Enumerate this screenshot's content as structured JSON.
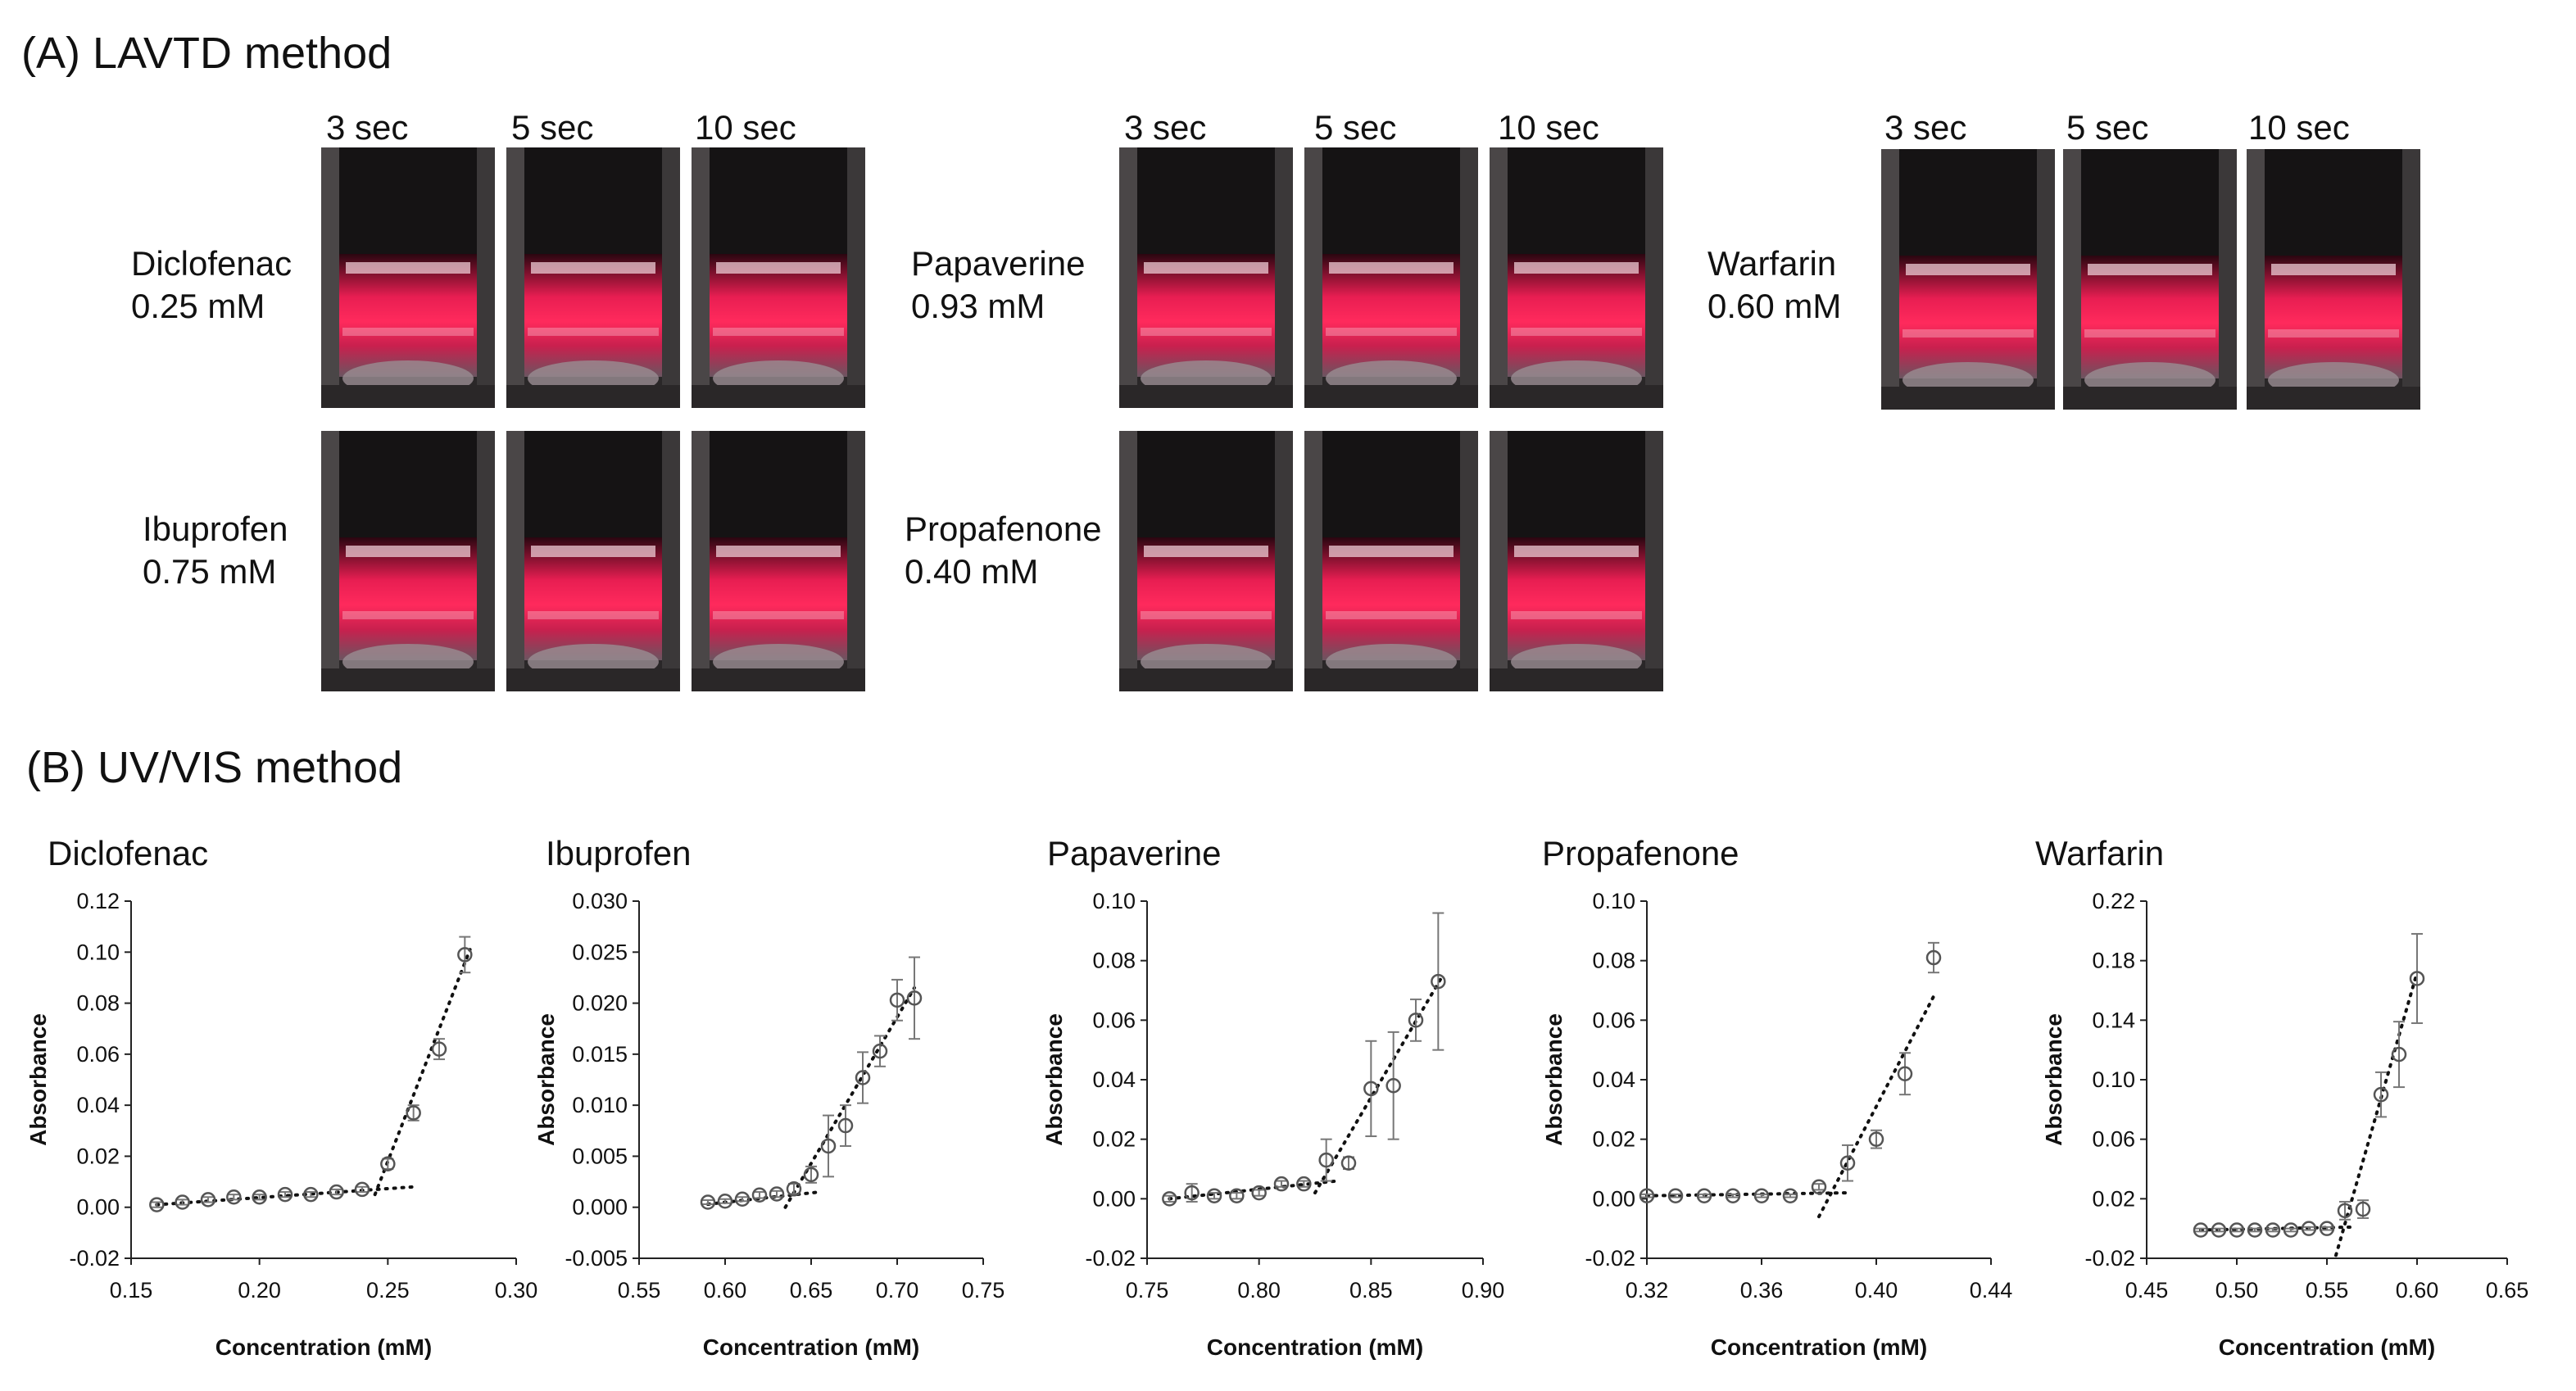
{
  "panel_a": {
    "title": "(A) LAVTD method",
    "groups": [
      {
        "times": [
          "3 sec",
          "5 sec",
          "10 sec"
        ],
        "rows": [
          {
            "name": "Diclofenac",
            "conc": "0.25 mM"
          },
          {
            "name": "Ibuprofen",
            "conc": "0.75 mM"
          }
        ]
      },
      {
        "times": [
          "3 sec",
          "5 sec",
          "10 sec"
        ],
        "rows": [
          {
            "name": "Papaverine",
            "conc": "0.93 mM"
          },
          {
            "name": "Propafenone",
            "conc": "0.40 mM"
          }
        ]
      },
      {
        "times": [
          "3 sec",
          "5 sec",
          "10 sec"
        ],
        "rows": [
          {
            "name": "Warfarin",
            "conc": "0.60 mM"
          }
        ]
      }
    ],
    "laser_color": "#ff2a5c"
  },
  "panel_b": {
    "title": "(B) UV/VIS method"
  },
  "chart_data": [
    {
      "type": "scatter",
      "title": "Diclofenac",
      "xlabel": "Concentration (mM)",
      "ylabel": "Absorbance",
      "xlim": [
        0.15,
        0.3
      ],
      "xticks": [
        "0.15",
        "0.20",
        "0.25",
        "0.30"
      ],
      "ylim": [
        -0.02,
        0.12
      ],
      "yticks": [
        "-0.02",
        "0.00",
        "0.02",
        "0.04",
        "0.06",
        "0.08",
        "0.10",
        "0.12"
      ],
      "x": [
        0.16,
        0.17,
        0.18,
        0.19,
        0.2,
        0.21,
        0.22,
        0.23,
        0.24,
        0.25,
        0.26,
        0.27,
        0.28
      ],
      "y": [
        0.001,
        0.002,
        0.003,
        0.004,
        0.004,
        0.005,
        0.005,
        0.006,
        0.007,
        0.017,
        0.037,
        0.062,
        0.099
      ],
      "err": [
        0.001,
        0.001,
        0.001,
        0.001,
        0.001,
        0.001,
        0.001,
        0.001,
        0.001,
        0.002,
        0.003,
        0.004,
        0.007
      ],
      "trendlines": [
        {
          "from": [
            0.16,
            0.001
          ],
          "to": [
            0.26,
            0.008
          ]
        },
        {
          "from": [
            0.245,
            0.005
          ],
          "to": [
            0.282,
            0.101
          ]
        }
      ]
    },
    {
      "type": "scatter",
      "title": "Ibuprofen",
      "xlabel": "Concentration (mM)",
      "ylabel": "Absorbance",
      "xlim": [
        0.55,
        0.75
      ],
      "xticks": [
        "0.55",
        "0.60",
        "0.65",
        "0.70",
        "0.75"
      ],
      "ylim": [
        -0.005,
        0.03
      ],
      "yticks": [
        "-0.005",
        "0.000",
        "0.005",
        "0.010",
        "0.015",
        "0.020",
        "0.025",
        "0.030"
      ],
      "x": [
        0.59,
        0.6,
        0.61,
        0.62,
        0.63,
        0.64,
        0.65,
        0.66,
        0.67,
        0.68,
        0.69,
        0.7,
        0.71
      ],
      "y": [
        0.0005,
        0.0006,
        0.0008,
        0.0012,
        0.0013,
        0.0018,
        0.0032,
        0.006,
        0.008,
        0.0127,
        0.0153,
        0.0203,
        0.0205
      ],
      "err": [
        0.0002,
        0.0002,
        0.0002,
        0.0003,
        0.0003,
        0.0005,
        0.0008,
        0.003,
        0.002,
        0.0025,
        0.0015,
        0.002,
        0.004
      ],
      "trendlines": [
        {
          "from": [
            0.59,
            0.0003
          ],
          "to": [
            0.655,
            0.0015
          ]
        },
        {
          "from": [
            0.635,
            0.0
          ],
          "to": [
            0.71,
            0.0215
          ]
        }
      ]
    },
    {
      "type": "scatter",
      "title": "Papaverine",
      "xlabel": "Concentration (mM)",
      "ylabel": "Absorbance",
      "xlim": [
        0.75,
        0.9
      ],
      "xticks": [
        "0.75",
        "0.80",
        "0.85",
        "0.90"
      ],
      "ylim": [
        -0.02,
        0.1
      ],
      "yticks": [
        "-0.02",
        "0.00",
        "0.02",
        "0.04",
        "0.06",
        "0.08",
        "0.10"
      ],
      "x": [
        0.76,
        0.77,
        0.78,
        0.79,
        0.8,
        0.81,
        0.82,
        0.83,
        0.84,
        0.85,
        0.86,
        0.87,
        0.88
      ],
      "y": [
        0.0,
        0.002,
        0.001,
        0.001,
        0.002,
        0.005,
        0.005,
        0.013,
        0.012,
        0.037,
        0.038,
        0.06,
        0.073
      ],
      "err": [
        0.001,
        0.003,
        0.001,
        0.001,
        0.001,
        0.001,
        0.001,
        0.007,
        0.002,
        0.016,
        0.018,
        0.007,
        0.023
      ],
      "trendlines": [
        {
          "from": [
            0.76,
            0.0
          ],
          "to": [
            0.835,
            0.006
          ]
        },
        {
          "from": [
            0.825,
            0.002
          ],
          "to": [
            0.882,
            0.075
          ]
        }
      ]
    },
    {
      "type": "scatter",
      "title": "Propafenone",
      "xlabel": "Concentration (mM)",
      "ylabel": "Absorbance",
      "xlim": [
        0.32,
        0.44
      ],
      "xticks": [
        "0.32",
        "0.36",
        "0.40",
        "0.44"
      ],
      "ylim": [
        -0.02,
        0.1
      ],
      "yticks": [
        "-0.02",
        "0.00",
        "0.02",
        "0.04",
        "0.06",
        "0.08",
        "0.10"
      ],
      "x": [
        0.32,
        0.33,
        0.34,
        0.35,
        0.36,
        0.37,
        0.38,
        0.39,
        0.4,
        0.41,
        0.42
      ],
      "y": [
        0.001,
        0.001,
        0.001,
        0.001,
        0.001,
        0.001,
        0.004,
        0.012,
        0.02,
        0.042,
        0.081
      ],
      "err": [
        0.0005,
        0.0005,
        0.0005,
        0.0005,
        0.0005,
        0.0005,
        0.001,
        0.006,
        0.003,
        0.007,
        0.005
      ],
      "trendlines": [
        {
          "from": [
            0.32,
            0.001
          ],
          "to": [
            0.39,
            0.002
          ]
        },
        {
          "from": [
            0.38,
            -0.006
          ],
          "to": [
            0.42,
            0.068
          ]
        }
      ]
    },
    {
      "type": "scatter",
      "title": "Warfarin",
      "xlabel": "Concentration (mM)",
      "ylabel": "Absorbance",
      "xlim": [
        0.45,
        0.65
      ],
      "xticks": [
        "0.45",
        "0.50",
        "0.55",
        "0.60",
        "0.65"
      ],
      "ylim": [
        -0.02,
        0.22
      ],
      "yticks": [
        "-0.02",
        "0.02",
        "0.06",
        "0.10",
        "0.14",
        "0.18",
        "0.22"
      ],
      "x": [
        0.48,
        0.49,
        0.5,
        0.51,
        0.52,
        0.53,
        0.54,
        0.55,
        0.56,
        0.57,
        0.58,
        0.59,
        0.6
      ],
      "y": [
        -0.001,
        -0.001,
        -0.001,
        -0.001,
        -0.001,
        -0.001,
        0.0,
        0.0,
        0.012,
        0.013,
        0.09,
        0.117,
        0.168
      ],
      "err": [
        0.001,
        0.001,
        0.001,
        0.001,
        0.001,
        0.001,
        0.001,
        0.001,
        0.006,
        0.006,
        0.015,
        0.022,
        0.03
      ],
      "trendlines": [
        {
          "from": [
            0.48,
            -0.001
          ],
          "to": [
            0.565,
            0.001
          ]
        },
        {
          "from": [
            0.555,
            -0.018
          ],
          "to": [
            0.6,
            0.172
          ]
        }
      ]
    }
  ]
}
